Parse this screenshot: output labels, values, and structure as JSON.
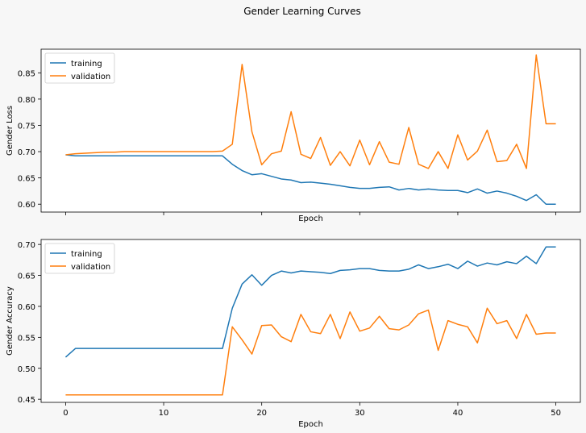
{
  "suptitle": "Gender Learning Curves",
  "colors": {
    "training": "#1f77b4",
    "validation": "#ff7f0e",
    "background": "#f7f7f7",
    "axes": "#ffffff"
  },
  "chart_data": [
    {
      "type": "line",
      "title": "",
      "xlabel": "Epoch",
      "ylabel": "Gender Loss",
      "xlim": [
        -2.5,
        52.5
      ],
      "ylim": [
        0.585,
        0.895
      ],
      "xticks": [
        0,
        10,
        20,
        30,
        40,
        50
      ],
      "show_xtick_labels": false,
      "yticks": [
        0.6,
        0.65,
        0.7,
        0.75,
        0.8,
        0.85
      ],
      "ytick_labels": [
        "0.60",
        "0.65",
        "0.70",
        "0.75",
        "0.80",
        "0.85"
      ],
      "grid": false,
      "legend": "top-left",
      "x": [
        0,
        1,
        2,
        3,
        4,
        5,
        6,
        7,
        8,
        9,
        10,
        11,
        12,
        13,
        14,
        15,
        16,
        17,
        18,
        19,
        20,
        21,
        22,
        23,
        24,
        25,
        26,
        27,
        28,
        29,
        30,
        31,
        32,
        33,
        34,
        35,
        36,
        37,
        38,
        39,
        40,
        41,
        42,
        43,
        44,
        45,
        46,
        47,
        48,
        49,
        50
      ],
      "series": [
        {
          "name": "training",
          "values": [
            0.694,
            0.692,
            0.692,
            0.692,
            0.692,
            0.692,
            0.692,
            0.692,
            0.692,
            0.692,
            0.692,
            0.692,
            0.692,
            0.692,
            0.692,
            0.692,
            0.692,
            0.676,
            0.664,
            0.656,
            0.658,
            0.653,
            0.648,
            0.646,
            0.641,
            0.642,
            0.64,
            0.638,
            0.635,
            0.632,
            0.63,
            0.63,
            0.632,
            0.633,
            0.627,
            0.63,
            0.627,
            0.629,
            0.627,
            0.626,
            0.626,
            0.622,
            0.629,
            0.621,
            0.625,
            0.621,
            0.615,
            0.607,
            0.618,
            0.6,
            0.6
          ]
        },
        {
          "name": "validation",
          "values": [
            0.694,
            0.696,
            0.697,
            0.698,
            0.699,
            0.699,
            0.7,
            0.7,
            0.7,
            0.7,
            0.7,
            0.7,
            0.7,
            0.7,
            0.7,
            0.7,
            0.701,
            0.714,
            0.866,
            0.738,
            0.675,
            0.696,
            0.701,
            0.776,
            0.695,
            0.687,
            0.727,
            0.674,
            0.7,
            0.673,
            0.722,
            0.675,
            0.719,
            0.68,
            0.676,
            0.746,
            0.676,
            0.668,
            0.7,
            0.668,
            0.732,
            0.684,
            0.701,
            0.741,
            0.681,
            0.683,
            0.714,
            0.668,
            0.884,
            0.753,
            0.753
          ]
        }
      ]
    },
    {
      "type": "line",
      "title": "",
      "xlabel": "Epoch",
      "ylabel": "Gender Accuracy",
      "xlim": [
        -2.5,
        52.5
      ],
      "ylim": [
        0.445,
        0.708
      ],
      "xticks": [
        0,
        10,
        20,
        30,
        40,
        50
      ],
      "show_xtick_labels": true,
      "xtick_labels": [
        "0",
        "10",
        "20",
        "30",
        "40",
        "50"
      ],
      "yticks": [
        0.45,
        0.5,
        0.55,
        0.6,
        0.65,
        0.7
      ],
      "ytick_labels": [
        "0.45",
        "0.50",
        "0.55",
        "0.60",
        "0.65",
        "0.70"
      ],
      "grid": false,
      "legend": "top-left",
      "x": [
        0,
        1,
        2,
        3,
        4,
        5,
        6,
        7,
        8,
        9,
        10,
        11,
        12,
        13,
        14,
        15,
        16,
        17,
        18,
        19,
        20,
        21,
        22,
        23,
        24,
        25,
        26,
        27,
        28,
        29,
        30,
        31,
        32,
        33,
        34,
        35,
        36,
        37,
        38,
        39,
        40,
        41,
        42,
        43,
        44,
        45,
        46,
        47,
        48,
        49,
        50
      ],
      "series": [
        {
          "name": "training",
          "values": [
            0.518,
            0.532,
            0.532,
            0.532,
            0.532,
            0.532,
            0.532,
            0.532,
            0.532,
            0.532,
            0.532,
            0.532,
            0.532,
            0.532,
            0.532,
            0.532,
            0.532,
            0.597,
            0.636,
            0.651,
            0.634,
            0.65,
            0.657,
            0.654,
            0.657,
            0.656,
            0.655,
            0.653,
            0.658,
            0.659,
            0.661,
            0.661,
            0.658,
            0.657,
            0.657,
            0.66,
            0.667,
            0.661,
            0.664,
            0.668,
            0.661,
            0.673,
            0.665,
            0.67,
            0.667,
            0.672,
            0.669,
            0.681,
            0.669,
            0.696,
            0.696
          ]
        },
        {
          "name": "validation",
          "values": [
            0.457,
            0.457,
            0.457,
            0.457,
            0.457,
            0.457,
            0.457,
            0.457,
            0.457,
            0.457,
            0.457,
            0.457,
            0.457,
            0.457,
            0.457,
            0.457,
            0.457,
            0.567,
            0.546,
            0.523,
            0.569,
            0.57,
            0.551,
            0.543,
            0.587,
            0.559,
            0.556,
            0.587,
            0.548,
            0.591,
            0.56,
            0.565,
            0.584,
            0.564,
            0.562,
            0.57,
            0.588,
            0.594,
            0.529,
            0.577,
            0.571,
            0.567,
            0.541,
            0.597,
            0.572,
            0.577,
            0.548,
            0.587,
            0.555,
            0.557,
            0.557
          ]
        }
      ]
    }
  ]
}
